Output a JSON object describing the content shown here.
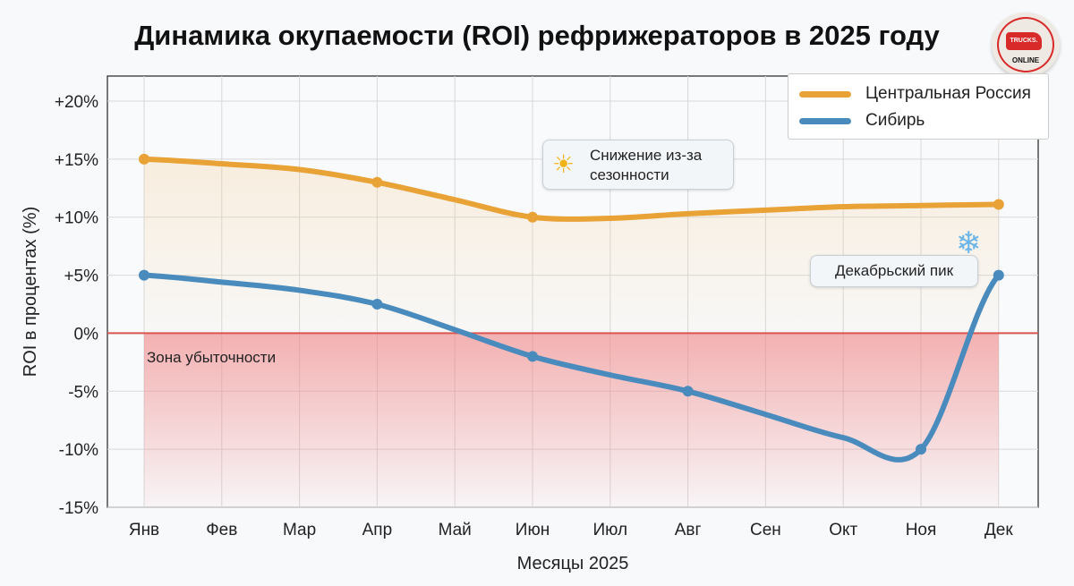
{
  "logo": {
    "text_top": "TRUCKS.",
    "text_bottom": "ONLINE",
    "color": "#d92a2a"
  },
  "chart_data": {
    "type": "line",
    "title": "Динамика окупаемости (ROI) рефрижераторов в 2025 году",
    "xlabel": "Месяцы 2025",
    "ylabel": "ROI в процентах (%)",
    "categories": [
      "Янв",
      "Фев",
      "Мар",
      "Апр",
      "Май",
      "Июн",
      "Июл",
      "Авг",
      "Сен",
      "Окт",
      "Ноя",
      "Дек"
    ],
    "ylim": [
      -15,
      20
    ],
    "yticks": [
      {
        "v": 20,
        "label": "+20%"
      },
      {
        "v": 15,
        "label": "+15%"
      },
      {
        "v": 10,
        "label": "+10%"
      },
      {
        "v": 5,
        "label": "+5%"
      },
      {
        "v": 0,
        "label": "0%"
      },
      {
        "v": -5,
        "label": "-5%"
      },
      {
        "v": -10,
        "label": "-10%"
      },
      {
        "v": -15,
        "label": "-15%"
      }
    ],
    "grid": true,
    "legend_position": "top-right",
    "series": [
      {
        "name": "Центральная Россия",
        "color": "#e9a235",
        "values": [
          15,
          14.6,
          14.1,
          13.0,
          11.5,
          10,
          9.9,
          10.3,
          10.6,
          10.9,
          11.0,
          11.1
        ],
        "markers": [
          0,
          3,
          5,
          11
        ]
      },
      {
        "name": "Сибирь",
        "color": "#4a8bbd",
        "values": [
          5,
          4.4,
          3.7,
          2.5,
          0.3,
          -2,
          -3.6,
          -5,
          -7,
          -9,
          -10,
          5
        ],
        "markers": [
          0,
          3,
          5,
          7,
          10,
          11
        ]
      }
    ],
    "zones": [
      {
        "label": "Зона убыточности",
        "from": -15,
        "to": 0,
        "color": "#f08080"
      }
    ],
    "annotations": [
      {
        "text_line1": "Снижение из-за",
        "text_line2": "сезонности",
        "icon": "sun-icon"
      },
      {
        "text": "Декабрьский пик",
        "icon": "snowflake-icon"
      }
    ]
  }
}
